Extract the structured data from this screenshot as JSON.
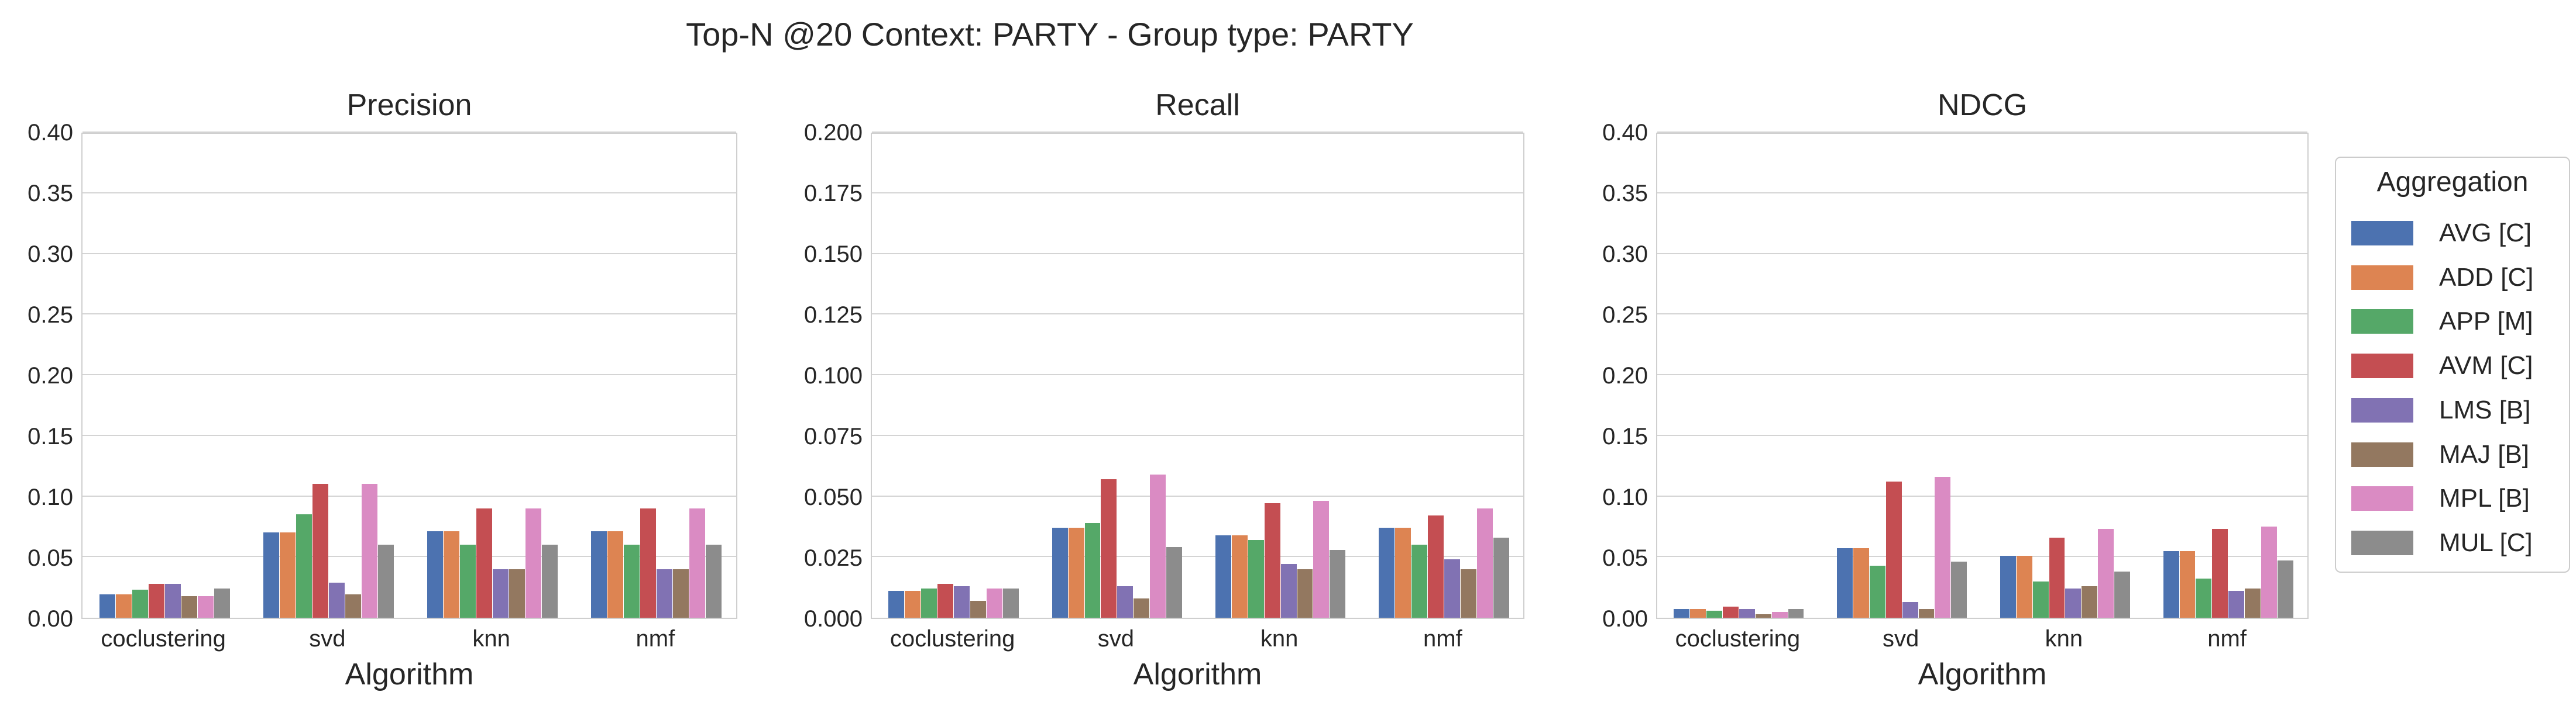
{
  "figure_title": "Top-N @20 Context: PARTY - Group type: PARTY",
  "legend": {
    "title": "Aggregation",
    "items": [
      {
        "label": "AVG [C]",
        "color": "#4c72b0"
      },
      {
        "label": "ADD [C]",
        "color": "#dd8452"
      },
      {
        "label": "APP [M]",
        "color": "#55a868"
      },
      {
        "label": "AVM [C]",
        "color": "#c44e52"
      },
      {
        "label": "LMS [B]",
        "color": "#8172b3"
      },
      {
        "label": "MAJ [B]",
        "color": "#937860"
      },
      {
        "label": "MPL [B]",
        "color": "#da8bc3"
      },
      {
        "label": "MUL [C]",
        "color": "#8c8c8c"
      }
    ]
  },
  "chart_data": [
    {
      "type": "bar",
      "title": "Precision",
      "xlabel": "Algorithm",
      "ylabel": "",
      "grid": true,
      "legend_position": "right-of-figure",
      "categories": [
        "coclustering",
        "svd",
        "knn",
        "nmf"
      ],
      "ylim": [
        0,
        0.4
      ],
      "yticks": [
        "0.00",
        "0.05",
        "0.10",
        "0.15",
        "0.20",
        "0.25",
        "0.30",
        "0.35",
        "0.40"
      ],
      "series": [
        {
          "name": "AVG [C]",
          "values": [
            0.019,
            0.07,
            0.071,
            0.071
          ]
        },
        {
          "name": "ADD [C]",
          "values": [
            0.019,
            0.07,
            0.071,
            0.071
          ]
        },
        {
          "name": "APP [M]",
          "values": [
            0.023,
            0.085,
            0.06,
            0.06
          ]
        },
        {
          "name": "AVM [C]",
          "values": [
            0.028,
            0.11,
            0.09,
            0.09
          ]
        },
        {
          "name": "LMS [B]",
          "values": [
            0.028,
            0.029,
            0.04,
            0.04
          ]
        },
        {
          "name": "MAJ [B]",
          "values": [
            0.018,
            0.019,
            0.04,
            0.04
          ]
        },
        {
          "name": "MPL [B]",
          "values": [
            0.018,
            0.11,
            0.09,
            0.09
          ]
        },
        {
          "name": "MUL [C]",
          "values": [
            0.024,
            0.06,
            0.06,
            0.06
          ]
        }
      ]
    },
    {
      "type": "bar",
      "title": "Recall",
      "xlabel": "Algorithm",
      "ylabel": "",
      "grid": true,
      "legend_position": "right-of-figure",
      "categories": [
        "coclustering",
        "svd",
        "knn",
        "nmf"
      ],
      "ylim": [
        0,
        0.2
      ],
      "yticks": [
        "0.000",
        "0.025",
        "0.050",
        "0.075",
        "0.100",
        "0.125",
        "0.150",
        "0.175",
        "0.200"
      ],
      "series": [
        {
          "name": "AVG [C]",
          "values": [
            0.011,
            0.037,
            0.034,
            0.037
          ]
        },
        {
          "name": "ADD [C]",
          "values": [
            0.011,
            0.037,
            0.034,
            0.037
          ]
        },
        {
          "name": "APP [M]",
          "values": [
            0.012,
            0.039,
            0.032,
            0.03
          ]
        },
        {
          "name": "AVM [C]",
          "values": [
            0.014,
            0.057,
            0.047,
            0.042
          ]
        },
        {
          "name": "LMS [B]",
          "values": [
            0.013,
            0.013,
            0.022,
            0.024
          ]
        },
        {
          "name": "MAJ [B]",
          "values": [
            0.007,
            0.008,
            0.02,
            0.02
          ]
        },
        {
          "name": "MPL [B]",
          "values": [
            0.012,
            0.059,
            0.048,
            0.045
          ]
        },
        {
          "name": "MUL [C]",
          "values": [
            0.012,
            0.029,
            0.028,
            0.033
          ]
        }
      ]
    },
    {
      "type": "bar",
      "title": "NDCG",
      "xlabel": "Algorithm",
      "ylabel": "",
      "grid": true,
      "legend_position": "right-of-figure",
      "categories": [
        "coclustering",
        "svd",
        "knn",
        "nmf"
      ],
      "ylim": [
        0,
        0.4
      ],
      "yticks": [
        "0.00",
        "0.05",
        "0.10",
        "0.15",
        "0.20",
        "0.25",
        "0.30",
        "0.35",
        "0.40"
      ],
      "series": [
        {
          "name": "AVG [C]",
          "values": [
            0.007,
            0.057,
            0.051,
            0.055
          ]
        },
        {
          "name": "ADD [C]",
          "values": [
            0.007,
            0.057,
            0.051,
            0.055
          ]
        },
        {
          "name": "APP [M]",
          "values": [
            0.006,
            0.043,
            0.03,
            0.032
          ]
        },
        {
          "name": "AVM [C]",
          "values": [
            0.009,
            0.112,
            0.066,
            0.073
          ]
        },
        {
          "name": "LMS [B]",
          "values": [
            0.007,
            0.013,
            0.024,
            0.022
          ]
        },
        {
          "name": "MAJ [B]",
          "values": [
            0.003,
            0.007,
            0.026,
            0.024
          ]
        },
        {
          "name": "MPL [B]",
          "values": [
            0.005,
            0.116,
            0.073,
            0.075
          ]
        },
        {
          "name": "MUL [C]",
          "values": [
            0.007,
            0.046,
            0.038,
            0.047
          ]
        }
      ]
    }
  ]
}
